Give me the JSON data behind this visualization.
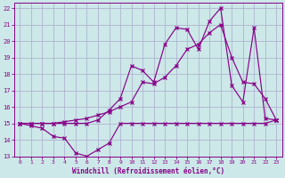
{
  "xlabel": "Windchill (Refroidissement éolien,°C)",
  "background_color": "#cce8e8",
  "grid_color": "#aaaacc",
  "line_color": "#880088",
  "xlim": [
    -0.5,
    23.5
  ],
  "ylim": [
    13,
    22.3
  ],
  "yticks": [
    13,
    14,
    15,
    16,
    17,
    18,
    19,
    20,
    21,
    22
  ],
  "xticks": [
    0,
    1,
    2,
    3,
    4,
    5,
    6,
    7,
    8,
    9,
    10,
    11,
    12,
    13,
    14,
    15,
    16,
    17,
    18,
    19,
    20,
    21,
    22,
    23
  ],
  "line1_x": [
    0,
    1,
    2,
    3,
    4,
    5,
    6,
    7,
    8,
    9,
    10,
    11,
    12,
    13,
    14,
    15,
    16,
    17,
    18,
    19,
    20,
    21,
    22,
    23
  ],
  "line1_y": [
    15.0,
    14.85,
    14.7,
    14.2,
    14.1,
    13.2,
    13.0,
    13.4,
    13.8,
    15.0,
    15.0,
    15.0,
    15.0,
    15.0,
    15.0,
    15.0,
    15.0,
    15.0,
    15.0,
    15.0,
    15.0,
    15.0,
    15.0,
    15.2
  ],
  "line2_x": [
    0,
    1,
    2,
    3,
    4,
    5,
    6,
    7,
    8,
    9,
    10,
    11,
    12,
    13,
    14,
    15,
    16,
    17,
    18,
    19,
    20,
    21,
    22,
    23
  ],
  "line2_y": [
    15.0,
    15.0,
    15.0,
    15.0,
    15.1,
    15.2,
    15.3,
    15.5,
    15.7,
    16.0,
    16.3,
    17.5,
    17.4,
    17.8,
    18.5,
    19.5,
    19.8,
    20.5,
    21.0,
    19.0,
    17.5,
    17.4,
    16.5,
    15.2
  ],
  "line3_x": [
    0,
    1,
    2,
    3,
    4,
    5,
    6,
    7,
    8,
    9,
    10,
    11,
    12,
    13,
    14,
    15,
    16,
    17,
    18,
    19,
    20,
    21,
    22,
    23
  ],
  "line3_y": [
    15.0,
    15.0,
    15.0,
    15.0,
    15.0,
    15.0,
    15.0,
    15.2,
    15.8,
    16.5,
    18.5,
    18.2,
    17.5,
    19.8,
    20.8,
    20.7,
    19.5,
    21.2,
    22.0,
    17.3,
    16.3,
    20.8,
    15.3,
    15.2
  ]
}
